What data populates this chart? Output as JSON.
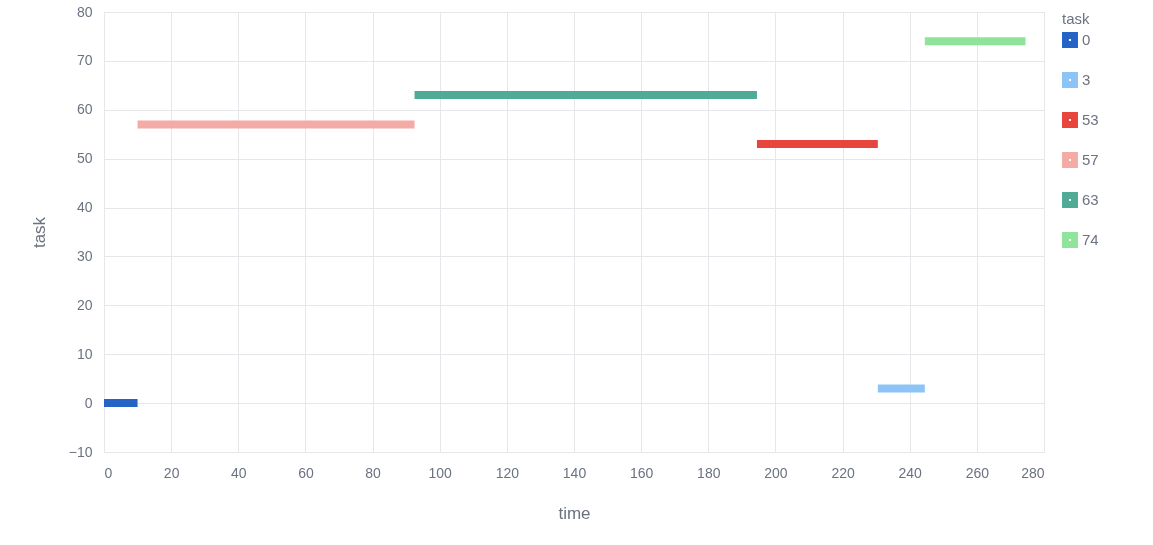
{
  "chart_data": {
    "type": "line",
    "xlabel": "time",
    "ylabel": "task",
    "legend_title": "task",
    "xlim": [
      0,
      280
    ],
    "xticks": [
      0,
      20,
      40,
      60,
      80,
      100,
      120,
      140,
      160,
      180,
      200,
      220,
      240,
      260,
      280
    ],
    "ylim": [
      -10,
      80
    ],
    "yticks": [
      -10,
      0,
      10,
      20,
      30,
      40,
      50,
      60,
      70,
      80
    ],
    "grid": true,
    "legend": "top right",
    "line_style": "solid",
    "marker": "none",
    "series": [
      {
        "name": "0",
        "color": "#2563c4",
        "x": [
          0,
          10
        ],
        "values": [
          0,
          0
        ]
      },
      {
        "name": "3",
        "color": "#8cc4f7",
        "x": [
          230.5,
          244.5
        ],
        "values": [
          3,
          3
        ]
      },
      {
        "name": "53",
        "color": "#e8453c",
        "x": [
          194.5,
          230.5
        ],
        "values": [
          53,
          53
        ]
      },
      {
        "name": "57",
        "color": "#f4aaa5",
        "x": [
          10,
          92.5
        ],
        "values": [
          57,
          57
        ]
      },
      {
        "name": "63",
        "color": "#4faa96",
        "x": [
          92.5,
          194.5
        ],
        "values": [
          63,
          63
        ]
      },
      {
        "name": "74",
        "color": "#8fe39b",
        "x": [
          244.5,
          274.5
        ],
        "values": [
          74,
          74
        ]
      }
    ]
  }
}
